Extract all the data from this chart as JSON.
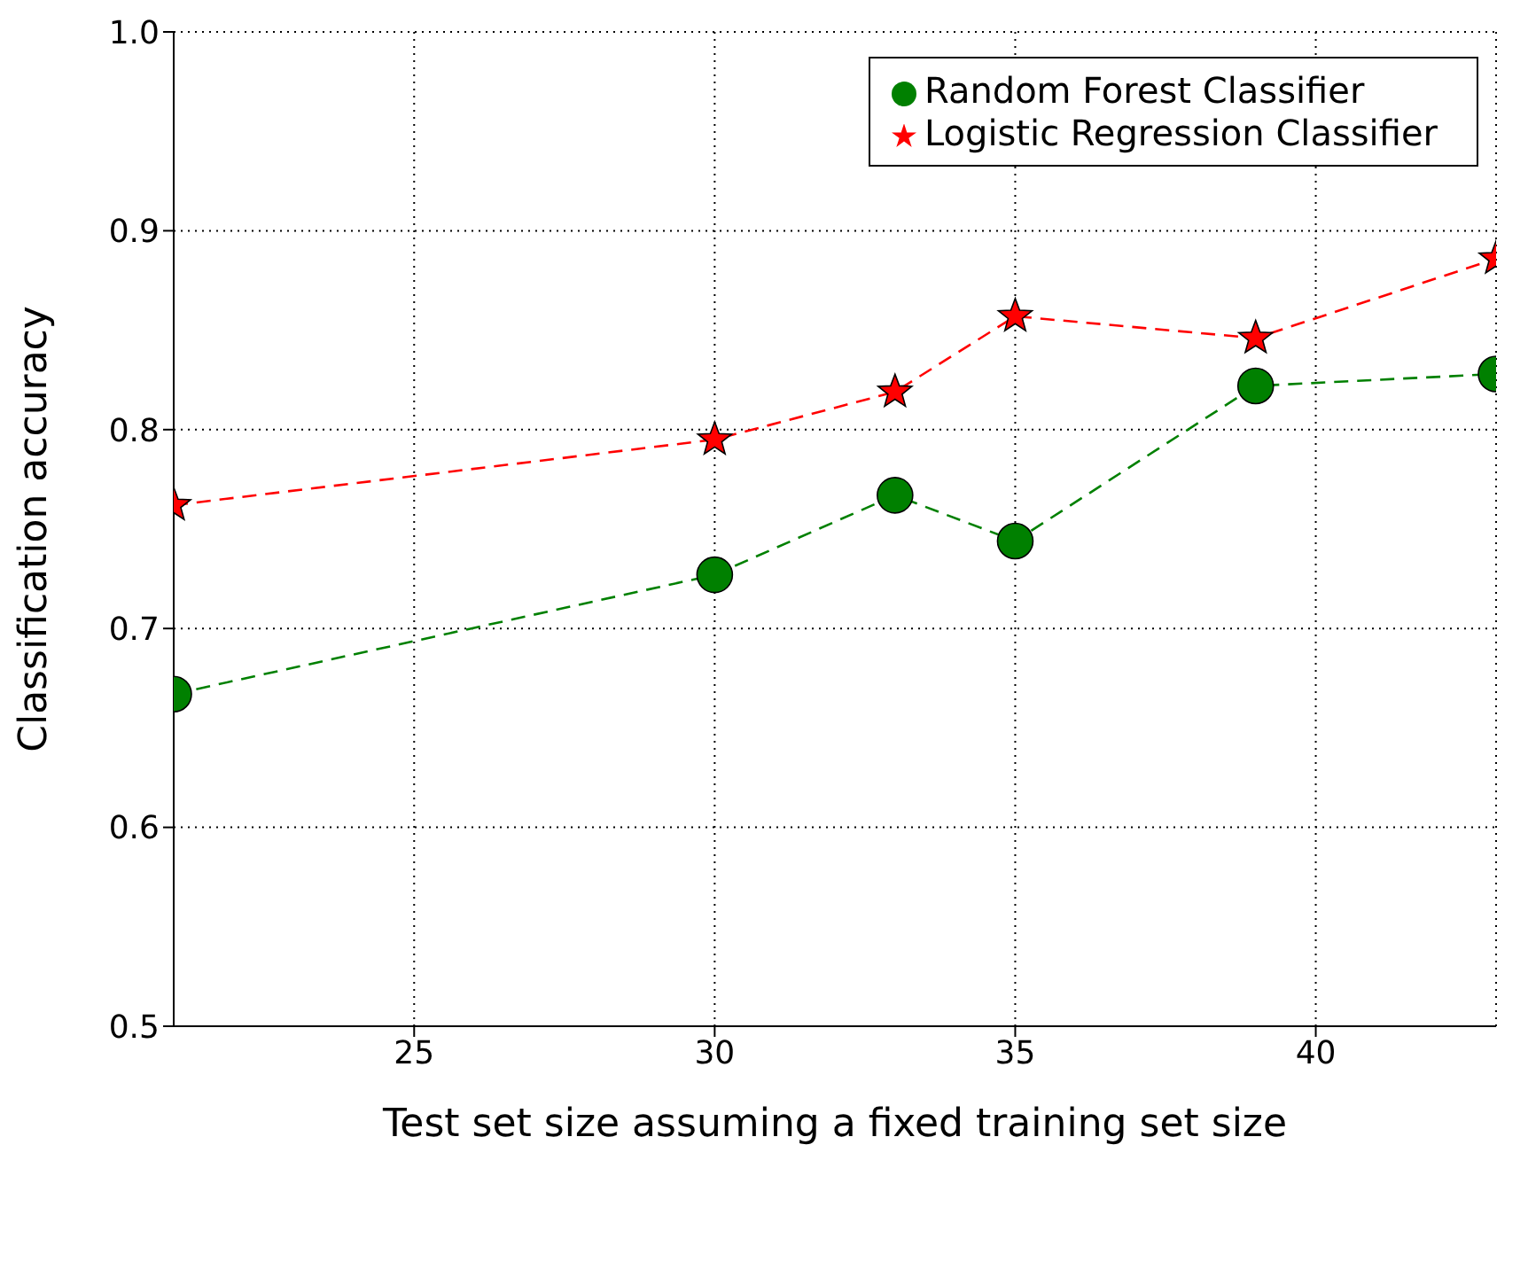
{
  "chart_data": {
    "type": "line",
    "xlabel": "Test set size assuming a fixed training set size",
    "ylabel": "Classification accuracy",
    "x": [
      21,
      30,
      33,
      35,
      39,
      43
    ],
    "series": [
      {
        "name": "Random Forest Classifier",
        "color": "#008000",
        "marker": "circle",
        "values": [
          0.667,
          0.727,
          0.767,
          0.744,
          0.822,
          0.828
        ]
      },
      {
        "name": "Logistic Regression Classifier",
        "color": "#ff0000",
        "marker": "star",
        "values": [
          0.762,
          0.795,
          0.819,
          0.857,
          0.846,
          0.886
        ]
      }
    ],
    "xlim": [
      21,
      43
    ],
    "xticks": [
      25,
      30,
      35,
      40
    ],
    "ylim": [
      0.5,
      1.0
    ],
    "yticks": [
      {
        "value": 0.5,
        "label": "0.5"
      },
      {
        "value": 0.6,
        "label": "0.6"
      },
      {
        "value": 0.7,
        "label": "0.7"
      },
      {
        "value": 0.8,
        "label": "0.8"
      },
      {
        "value": 0.9,
        "label": "0.9"
      },
      {
        "value": 1.0,
        "label": "1.0"
      }
    ],
    "grid": true,
    "legend": "top right",
    "line_style": "dashed"
  }
}
